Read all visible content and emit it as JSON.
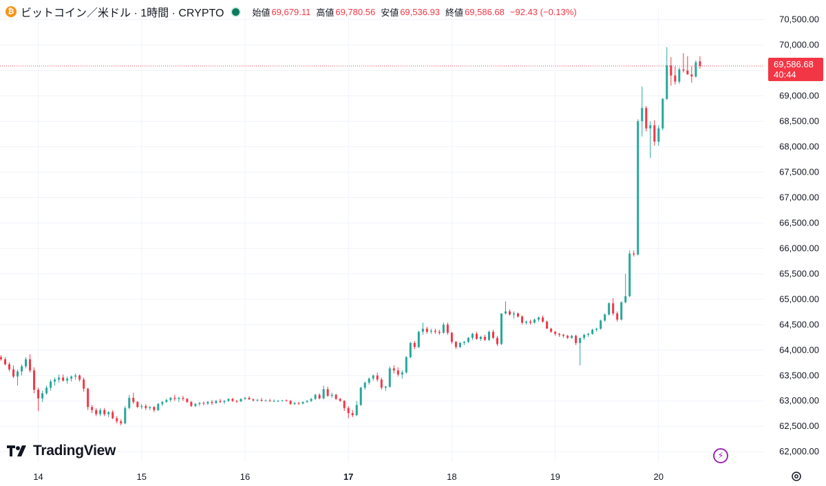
{
  "header": {
    "coin_icon_glyph": "₿",
    "title": "ビットコイン／米ドル · 1時間 · CRYPTO",
    "open_label": "始値",
    "open_value": "69,679.11",
    "high_label": "高値",
    "high_value": "69,780.56",
    "low_label": "安値",
    "low_value": "69,536.93",
    "close_label": "終値",
    "close_value": "69,586.68",
    "change": "−92.43 (−0.13%)"
  },
  "logo_text": "TradingView",
  "price_tag": {
    "price": "69,586.68",
    "countdown": "40:44"
  },
  "colors": {
    "up": "#26a69a",
    "down": "#f23645",
    "grid": "#f0f3fa",
    "text": "#131722",
    "accent": "#9c27b0"
  },
  "chart_data": {
    "type": "candlestick",
    "y_ticks": [
      "62,000.00",
      "62,500.00",
      "63,000.00",
      "63,500.00",
      "64,000.00",
      "64,500.00",
      "65,000.00",
      "65,500.00",
      "66,000.00",
      "66,500.00",
      "67,000.00",
      "67,500.00",
      "68,000.00",
      "68,500.00",
      "69,000.00",
      "69,500.00",
      "70,000.00",
      "70,500.00"
    ],
    "x_ticks": [
      {
        "label": "14",
        "x": 13.36,
        "bold": false
      },
      {
        "label": "15",
        "x": 14.36,
        "bold": false
      },
      {
        "label": "16",
        "x": 15.36,
        "bold": false
      },
      {
        "label": "17",
        "x": 16.36,
        "bold": true
      },
      {
        "label": "18",
        "x": 17.36,
        "bold": false
      },
      {
        "label": "19",
        "x": 18.36,
        "bold": false
      },
      {
        "label": "20",
        "x": 19.36,
        "bold": false
      }
    ],
    "ylim": [
      61800,
      70750
    ],
    "xlim": [
      12.99,
      20.38
    ],
    "current_price": 69586.68,
    "candles_note": "hourly OHLC, x in days",
    "candles": [
      [
        13.0,
        63860,
        63900,
        63790,
        63820
      ],
      [
        13.04,
        63820,
        63860,
        63700,
        63720
      ],
      [
        13.08,
        63720,
        63760,
        63580,
        63620
      ],
      [
        13.12,
        63620,
        63700,
        63450,
        63480
      ],
      [
        13.16,
        63480,
        63620,
        63300,
        63580
      ],
      [
        13.2,
        63580,
        63720,
        63500,
        63680
      ],
      [
        13.24,
        63680,
        63860,
        63640,
        63820
      ],
      [
        13.28,
        63820,
        63920,
        63560,
        63600
      ],
      [
        13.32,
        63600,
        63660,
        63150,
        63220
      ],
      [
        13.36,
        63220,
        63260,
        62800,
        63050
      ],
      [
        13.4,
        63050,
        63200,
        62980,
        63150
      ],
      [
        13.44,
        63150,
        63300,
        63120,
        63260
      ],
      [
        13.48,
        63260,
        63420,
        63200,
        63380
      ],
      [
        13.52,
        63380,
        63460,
        63300,
        63420
      ],
      [
        13.56,
        63420,
        63520,
        63360,
        63460
      ],
      [
        13.6,
        63460,
        63520,
        63380,
        63400
      ],
      [
        13.64,
        63400,
        63480,
        63340,
        63440
      ],
      [
        13.68,
        63440,
        63500,
        63380,
        63480
      ],
      [
        13.72,
        63480,
        63540,
        63420,
        63500
      ],
      [
        13.76,
        63500,
        63520,
        63380,
        63420
      ],
      [
        13.8,
        63420,
        63460,
        63180,
        63240
      ],
      [
        13.84,
        63240,
        63260,
        62820,
        62880
      ],
      [
        13.88,
        62880,
        62920,
        62760,
        62820
      ],
      [
        13.92,
        62820,
        62860,
        62700,
        62740
      ],
      [
        13.96,
        62740,
        62860,
        62700,
        62820
      ],
      [
        14.0,
        62820,
        62860,
        62700,
        62740
      ],
      [
        14.04,
        62740,
        62800,
        62680,
        62780
      ],
      [
        14.08,
        62780,
        62820,
        62640,
        62660
      ],
      [
        14.12,
        62660,
        62700,
        62560,
        62600
      ],
      [
        14.16,
        62600,
        62640,
        62520,
        62560
      ],
      [
        14.2,
        62560,
        62900,
        62540,
        62860
      ],
      [
        14.24,
        62860,
        63120,
        62840,
        63060
      ],
      [
        14.28,
        63060,
        63160,
        62940,
        62980
      ],
      [
        14.32,
        62980,
        63000,
        62860,
        62880
      ],
      [
        14.36,
        62880,
        62940,
        62840,
        62900
      ],
      [
        14.4,
        62900,
        62940,
        62820,
        62860
      ],
      [
        14.44,
        62860,
        62900,
        62820,
        62880
      ],
      [
        14.48,
        62880,
        62900,
        62780,
        62820
      ],
      [
        14.52,
        62820,
        62960,
        62800,
        62940
      ],
      [
        14.56,
        62940,
        63000,
        62900,
        62980
      ],
      [
        14.6,
        62980,
        63040,
        62960,
        63020
      ],
      [
        14.64,
        63020,
        63080,
        62980,
        63060
      ],
      [
        14.68,
        63060,
        63120,
        63000,
        63040
      ],
      [
        14.72,
        63040,
        63080,
        62980,
        63060
      ],
      [
        14.76,
        63060,
        63100,
        63000,
        63040
      ],
      [
        14.8,
        63040,
        63060,
        62960,
        62980
      ],
      [
        14.84,
        62980,
        63000,
        62880,
        62900
      ],
      [
        14.88,
        62900,
        62960,
        62880,
        62940
      ],
      [
        14.92,
        62940,
        62980,
        62900,
        62960
      ],
      [
        14.96,
        62960,
        62990,
        62910,
        62950
      ],
      [
        15.0,
        62950,
        63000,
        62920,
        62980
      ],
      [
        15.04,
        62980,
        63020,
        62920,
        62960
      ],
      [
        15.08,
        62960,
        63020,
        62940,
        63000
      ],
      [
        15.12,
        63000,
        63040,
        62960,
        62980
      ],
      [
        15.16,
        62980,
        63020,
        62940,
        63000
      ],
      [
        15.2,
        63000,
        63050,
        62980,
        63040
      ],
      [
        15.24,
        63040,
        63060,
        62980,
        63000
      ],
      [
        15.28,
        63000,
        63020,
        62960,
        62990
      ],
      [
        15.32,
        62990,
        63050,
        62980,
        63040
      ],
      [
        15.36,
        63040,
        63080,
        63020,
        63060
      ],
      [
        15.4,
        63060,
        63090,
        63020,
        63030
      ],
      [
        15.44,
        63030,
        63050,
        62990,
        63010
      ],
      [
        15.48,
        63010,
        63040,
        62990,
        63020
      ],
      [
        15.52,
        63020,
        63060,
        62990,
        63000
      ],
      [
        15.56,
        63000,
        63030,
        62990,
        63010
      ],
      [
        15.6,
        63010,
        63040,
        62980,
        63000
      ],
      [
        15.64,
        63000,
        63030,
        62980,
        63000
      ],
      [
        15.68,
        63000,
        63020,
        62980,
        63000
      ],
      [
        15.72,
        63000,
        63020,
        62990,
        63010
      ],
      [
        15.76,
        63010,
        63030,
        62990,
        63000
      ],
      [
        15.8,
        63000,
        63020,
        62920,
        62940
      ],
      [
        15.84,
        62940,
        62980,
        62920,
        62960
      ],
      [
        15.88,
        62960,
        62980,
        62920,
        62950
      ],
      [
        15.92,
        62950,
        62990,
        62930,
        62980
      ],
      [
        15.96,
        62980,
        63020,
        62960,
        63000
      ],
      [
        16.0,
        63000,
        63060,
        62980,
        63040
      ],
      [
        16.04,
        63040,
        63140,
        63020,
        63120
      ],
      [
        16.08,
        63120,
        63150,
        63030,
        63050
      ],
      [
        16.12,
        63050,
        63300,
        63030,
        63230
      ],
      [
        16.16,
        63230,
        63280,
        63080,
        63100
      ],
      [
        16.2,
        63100,
        63160,
        63060,
        63120
      ],
      [
        16.24,
        63120,
        63140,
        63020,
        63040
      ],
      [
        16.28,
        63040,
        63060,
        62980,
        63000
      ],
      [
        16.32,
        63000,
        63020,
        62800,
        62860
      ],
      [
        16.36,
        62860,
        62900,
        62660,
        62760
      ],
      [
        16.4,
        62760,
        62820,
        62680,
        62720
      ],
      [
        16.44,
        62720,
        63000,
        62700,
        62920
      ],
      [
        16.48,
        62920,
        63280,
        62900,
        63260
      ],
      [
        16.52,
        63260,
        63380,
        63220,
        63360
      ],
      [
        16.56,
        63360,
        63460,
        63320,
        63440
      ],
      [
        16.6,
        63440,
        63520,
        63400,
        63500
      ],
      [
        16.64,
        63500,
        63560,
        63380,
        63420
      ],
      [
        16.68,
        63420,
        63460,
        63220,
        63260
      ],
      [
        16.72,
        63260,
        63300,
        63200,
        63280
      ],
      [
        16.76,
        63280,
        63680,
        63260,
        63640
      ],
      [
        16.8,
        63640,
        63700,
        63540,
        63600
      ],
      [
        16.84,
        63600,
        63660,
        63480,
        63520
      ],
      [
        16.88,
        63520,
        63600,
        63440,
        63560
      ],
      [
        16.92,
        63560,
        63880,
        63540,
        63860
      ],
      [
        16.96,
        63860,
        64160,
        63840,
        64140
      ],
      [
        17.0,
        64140,
        64180,
        64020,
        64060
      ],
      [
        17.04,
        64060,
        64380,
        64040,
        64360
      ],
      [
        17.08,
        64360,
        64540,
        64300,
        64420
      ],
      [
        17.12,
        64420,
        64460,
        64320,
        64360
      ],
      [
        17.16,
        64360,
        64420,
        64320,
        64380
      ],
      [
        17.2,
        64380,
        64420,
        64320,
        64360
      ],
      [
        17.24,
        64360,
        64400,
        64300,
        64340
      ],
      [
        17.28,
        64340,
        64540,
        64320,
        64500
      ],
      [
        17.32,
        64500,
        64540,
        64300,
        64340
      ],
      [
        17.36,
        64340,
        64360,
        64120,
        64160
      ],
      [
        17.4,
        64160,
        64180,
        64020,
        64060
      ],
      [
        17.44,
        64060,
        64160,
        64040,
        64140
      ],
      [
        17.48,
        64140,
        64180,
        64100,
        64160
      ],
      [
        17.52,
        64160,
        64260,
        64140,
        64240
      ],
      [
        17.56,
        64240,
        64340,
        64200,
        64320
      ],
      [
        17.6,
        64320,
        64360,
        64200,
        64220
      ],
      [
        17.64,
        64220,
        64280,
        64180,
        64260
      ],
      [
        17.68,
        64260,
        64300,
        64180,
        64200
      ],
      [
        17.72,
        64200,
        64380,
        64180,
        64360
      ],
      [
        17.76,
        64360,
        64400,
        64220,
        64240
      ],
      [
        17.8,
        64240,
        64280,
        64080,
        64120
      ],
      [
        17.84,
        64120,
        64700,
        64100,
        64720
      ],
      [
        17.88,
        64720,
        64960,
        64700,
        64760
      ],
      [
        17.92,
        64760,
        64800,
        64680,
        64700
      ],
      [
        17.96,
        64700,
        64760,
        64620,
        64720
      ],
      [
        18.0,
        64720,
        64740,
        64640,
        64660
      ],
      [
        18.04,
        64660,
        64680,
        64500,
        64540
      ],
      [
        18.08,
        64540,
        64580,
        64500,
        64560
      ],
      [
        18.12,
        64560,
        64600,
        64500,
        64540
      ],
      [
        18.16,
        64540,
        64620,
        64520,
        64600
      ],
      [
        18.2,
        64600,
        64660,
        64560,
        64640
      ],
      [
        18.24,
        64640,
        64680,
        64540,
        64560
      ],
      [
        18.28,
        64560,
        64580,
        64480,
        64420
      ],
      [
        18.32,
        64420,
        64440,
        64340,
        64360
      ],
      [
        18.36,
        64360,
        64380,
        64280,
        64320
      ],
      [
        18.4,
        64320,
        64340,
        64260,
        64300
      ],
      [
        18.44,
        64300,
        64320,
        64240,
        64280
      ],
      [
        18.48,
        64280,
        64300,
        64220,
        64240
      ],
      [
        18.52,
        64240,
        64300,
        64220,
        64280
      ],
      [
        18.56,
        64280,
        64300,
        64100,
        64140
      ],
      [
        18.6,
        64140,
        64240,
        63700,
        64240
      ],
      [
        18.64,
        64240,
        64320,
        64200,
        64300
      ],
      [
        18.68,
        64300,
        64340,
        64260,
        64320
      ],
      [
        18.72,
        64320,
        64420,
        64300,
        64400
      ],
      [
        18.76,
        64400,
        64440,
        64360,
        64420
      ],
      [
        18.8,
        64420,
        64600,
        64400,
        64580
      ],
      [
        18.84,
        64580,
        64720,
        64560,
        64700
      ],
      [
        18.88,
        64700,
        64940,
        64680,
        64920
      ],
      [
        18.92,
        64920,
        65020,
        64680,
        64720
      ],
      [
        18.96,
        64720,
        64760,
        64560,
        64600
      ],
      [
        19.0,
        64600,
        64960,
        64580,
        64940
      ],
      [
        19.04,
        64940,
        65500,
        64920,
        65060
      ],
      [
        19.08,
        65060,
        65960,
        65040,
        65900
      ],
      [
        19.12,
        65900,
        65960,
        65840,
        65880
      ],
      [
        19.16,
        65880,
        68540,
        65860,
        68500
      ],
      [
        19.2,
        68500,
        69180,
        68200,
        68760
      ],
      [
        19.24,
        68760,
        68800,
        68300,
        68360
      ],
      [
        19.28,
        68360,
        68500,
        67780,
        68420
      ],
      [
        19.32,
        68420,
        68520,
        68020,
        68100
      ],
      [
        19.36,
        68100,
        68420,
        68020,
        68360
      ],
      [
        19.4,
        68360,
        68960,
        68320,
        68940
      ],
      [
        19.44,
        68940,
        69960,
        68920,
        69600
      ],
      [
        19.48,
        69600,
        69760,
        69200,
        69400
      ],
      [
        19.52,
        69400,
        69580,
        69220,
        69280
      ],
      [
        19.56,
        69280,
        69560,
        69240,
        69520
      ],
      [
        19.6,
        69520,
        69840,
        69460,
        69500
      ],
      [
        19.64,
        69500,
        69780,
        69420,
        69420
      ],
      [
        19.68,
        69420,
        69580,
        69260,
        69380
      ],
      [
        19.72,
        69380,
        69700,
        69360,
        69660
      ],
      [
        19.76,
        69679.11,
        69780.56,
        69536.93,
        69586.68
      ]
    ]
  }
}
